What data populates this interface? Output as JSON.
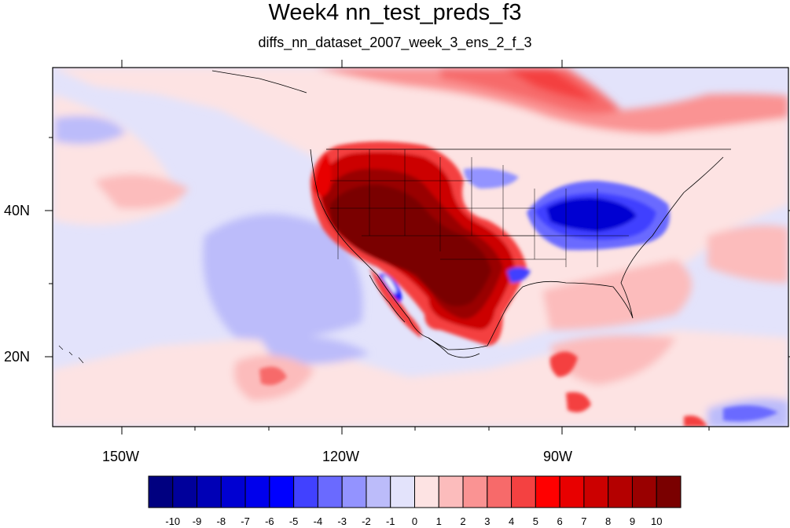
{
  "title": "Week4 nn_test_preds_f3",
  "subtitle": "diffs_nn_dataset_2007_week_3_ens_2_f_3",
  "map": {
    "lon_labels": [
      "150W",
      "120W",
      "90W"
    ],
    "lat_labels": [
      "40N",
      "20N"
    ],
    "field_description": "difference field over North Pacific and North America"
  },
  "colorbar": {
    "labels": [
      "-10",
      "-9",
      "-8",
      "-7",
      "-6",
      "-5",
      "-4",
      "-3",
      "-2",
      "-1",
      "0",
      "1",
      "2",
      "3",
      "4",
      "5",
      "6",
      "7",
      "8",
      "9",
      "10"
    ],
    "colors": [
      "#000080",
      "#00009b",
      "#0000b6",
      "#0000d2",
      "#0000ec",
      "#0000ff",
      "#4141ff",
      "#6a6aff",
      "#9393ff",
      "#bcbcfa",
      "#e3e3fb",
      "#fde3e3",
      "#fcbcbc",
      "#fa9393",
      "#f76a6a",
      "#f44141",
      "#ff0000",
      "#e80000",
      "#cc0000",
      "#b40000",
      "#990000",
      "#7a0000"
    ]
  }
}
